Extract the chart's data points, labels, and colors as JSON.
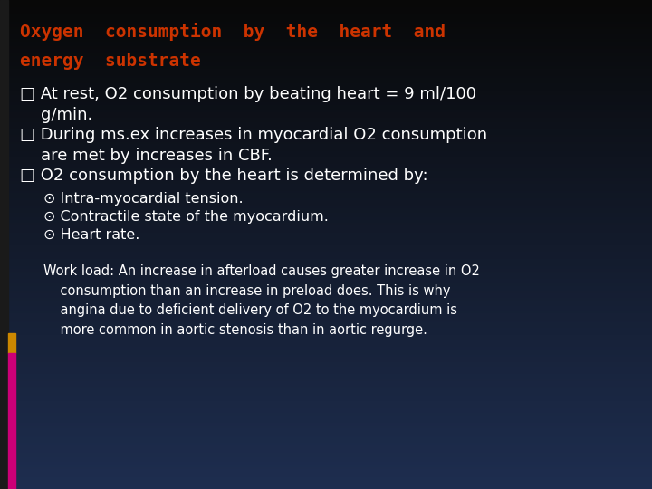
{
  "title_line1": "Oxygen  consumption  by  the  heart  and",
  "title_line2": "energy  substrate",
  "title_color": "#cc3300",
  "bg_color_top": "#080808",
  "bg_color_bottom": "#1e2e50",
  "text_color": "#ffffff",
  "bullet1_line1": "□ At rest, O2 consumption by beating heart = 9 ml/100",
  "bullet1_line2": "    g/min.",
  "bullet2_line1": "□ During ms.ex increases in myocardial O2 consumption",
  "bullet2_line2": "    are met by increases in CBF.",
  "bullet3_line1": "□ O2 consumption by the heart is determined by:",
  "sub1": "⊙ Intra-myocardial tension.",
  "sub2": "⊙ Contractile state of the myocardium.",
  "sub3": "⊙ Heart rate.",
  "workload_text": "Work load: An increase in afterload causes greater increase in O2\n    consumption than an increase in preload does. This is why\n    angina due to deficient delivery of O2 to the myocardium is\n    more common in aortic stenosis than in aortic regurge.",
  "title_fontsize": 14,
  "bullet_fontsize": 13,
  "sub_fontsize": 11.5,
  "work_fontsize": 10.5
}
